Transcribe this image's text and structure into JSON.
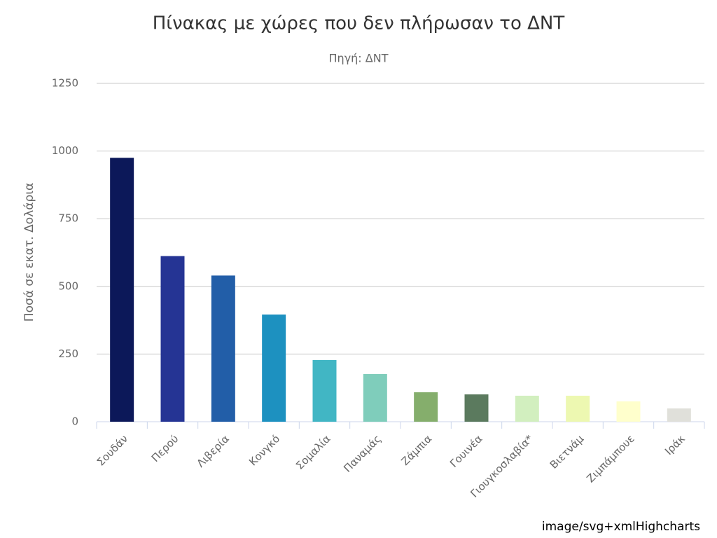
{
  "chart_data": {
    "type": "bar",
    "title": "Πίνακας με χώρες που δεν πλήρωσαν το ΔΝΤ",
    "subtitle": "Πηγή: ΔΝΤ",
    "y_axis_label": "Ποσά σε εκατ. Δολάρια",
    "credits": "image/svg+xmlHighcharts",
    "categories": [
      "Σουδάν",
      "Περού",
      "Λιβερία",
      "Κονγκό",
      "Σομαλία",
      "Παναμάς",
      "Ζάμπια",
      "Γουινέα",
      "Γιουγκοσλαβία*",
      "Βιετνάμ",
      "Ζιμπάμπουε",
      "Ιράκ"
    ],
    "values": [
      975,
      612,
      540,
      396,
      228,
      176,
      109,
      101,
      96,
      96,
      75,
      49
    ],
    "colors": [
      "#0c1859",
      "#253494",
      "#225ea8",
      "#1d91c0",
      "#41b6c4",
      "#7fcdbb",
      "#85ae6c",
      "#5b7a5e",
      "#d2efbf",
      "#edf8b1",
      "#ffffcc",
      "#e0e0da"
    ],
    "ylim": [
      0,
      1250
    ],
    "yticks": [
      0,
      250,
      500,
      750,
      1000,
      1250
    ],
    "grid": true
  }
}
